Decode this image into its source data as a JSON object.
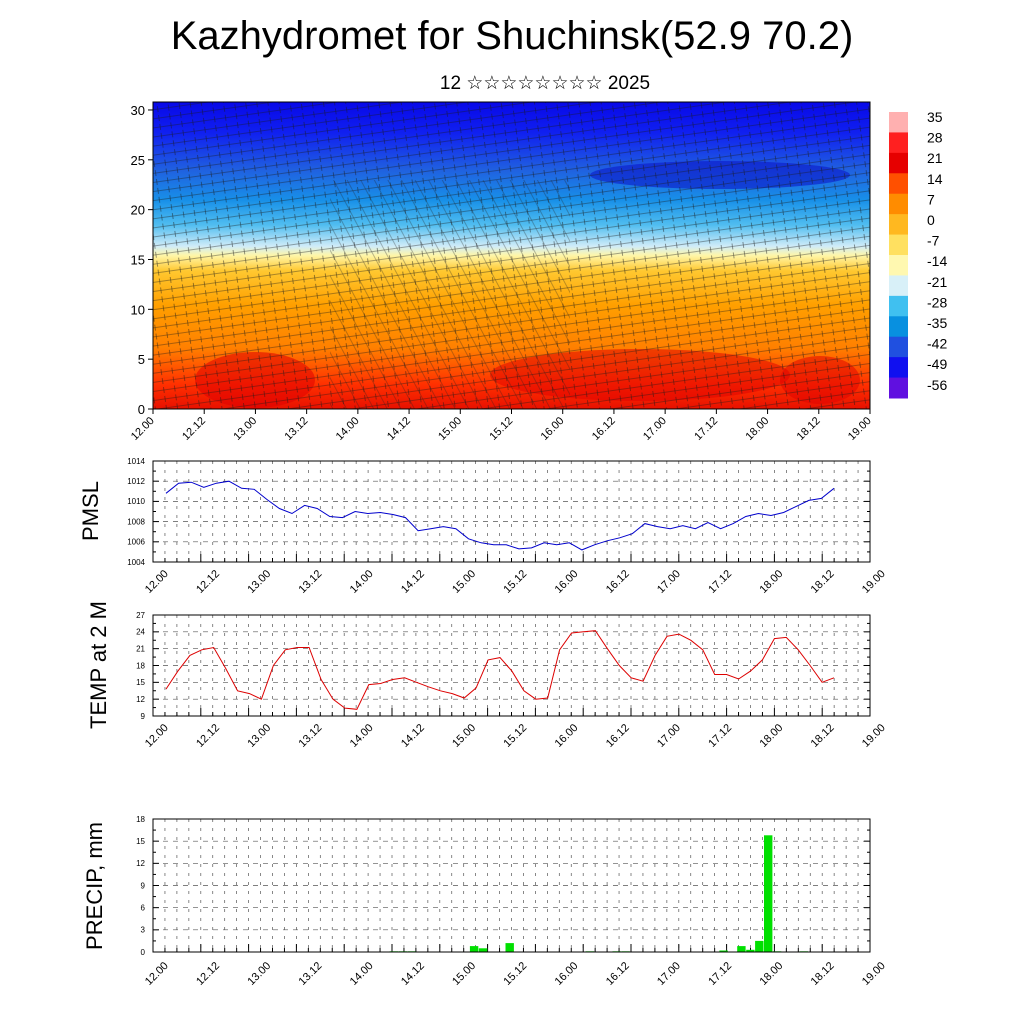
{
  "title": "Kazhydromet for Shuchinsk(52.9 70.2)",
  "subtitle": "12 ☆☆☆☆☆☆☆☆ 2025",
  "time_labels": [
    "12.00",
    "12.12",
    "13.00",
    "13.12",
    "14.00",
    "14.12",
    "15.00",
    "15.12",
    "16.00",
    "16.12",
    "17.00",
    "17.12",
    "18.00",
    "18.12",
    "19.00"
  ],
  "chart_data": [
    {
      "type": "heatmap",
      "title": "",
      "xlabel": "",
      "ylabel": "",
      "x": [
        "12.00",
        "12.12",
        "13.00",
        "13.12",
        "14.00",
        "14.12",
        "15.00",
        "15.12",
        "16.00",
        "16.12",
        "17.00",
        "17.12",
        "18.00",
        "18.12",
        "19.00"
      ],
      "yticks": [
        0,
        5,
        10,
        15,
        20,
        25,
        30
      ],
      "ylim": [
        0,
        30.8
      ],
      "colorbar": {
        "ticks": [
          35,
          28,
          21,
          14,
          7,
          0,
          -7,
          -14,
          -21,
          -28,
          -35,
          -42,
          -49,
          -56
        ],
        "colors": [
          "#ffb0b0",
          "#ff2020",
          "#e60000",
          "#ff5000",
          "#ff8c00",
          "#ffb820",
          "#ffe060",
          "#fff8b0",
          "#d8f0f8",
          "#40c0f0",
          "#0890e0",
          "#2050e0",
          "#1010f0",
          "#6010e0"
        ]
      }
    },
    {
      "type": "line",
      "ylabel": "PMSL",
      "ylim": [
        1004,
        1014
      ],
      "yticks": [
        1004,
        1006,
        1008,
        1010,
        1012,
        1014
      ],
      "series": [
        {
          "color": "#0000cc",
          "values": [
            1010.8,
            1011.8,
            1011.9,
            1011.4,
            1011.8,
            1012.0,
            1011.3,
            1011.2,
            1010.2,
            1009.3,
            1008.8,
            1009.6,
            1009.3,
            1008.5,
            1008.4,
            1009.0,
            1008.8,
            1008.9,
            1008.7,
            1008.4,
            1007.1,
            1007.3,
            1007.5,
            1007.3,
            1006.3,
            1005.9,
            1005.7,
            1005.7,
            1005.3,
            1005.4,
            1005.9,
            1005.7,
            1005.9,
            1005.2,
            1005.7,
            1006.1,
            1006.4,
            1006.8,
            1007.8,
            1007.5,
            1007.3,
            1007.6,
            1007.3,
            1007.9,
            1007.3,
            1007.8,
            1008.5,
            1008.8,
            1008.6,
            1008.9,
            1009.5,
            1010.1,
            1010.3,
            1011.3
          ]
        }
      ]
    },
    {
      "type": "line",
      "ylabel": "TEMP at 2 M",
      "ylim": [
        9,
        27
      ],
      "yticks": [
        9,
        12,
        15,
        18,
        21,
        24,
        27
      ],
      "series": [
        {
          "color": "#dd0000",
          "values": [
            13.8,
            17.0,
            19.8,
            20.8,
            21.2,
            17.5,
            13.5,
            13.0,
            12.0,
            18.0,
            20.8,
            21.2,
            21.2,
            15.5,
            12.0,
            10.4,
            10.2,
            14.6,
            14.8,
            15.5,
            15.8,
            15.0,
            14.2,
            13.5,
            13.0,
            12.2,
            14.0,
            19.0,
            19.4,
            17.0,
            13.5,
            12.0,
            12.2,
            20.8,
            23.8,
            24.0,
            24.2,
            21.0,
            18.0,
            15.8,
            15.2,
            19.8,
            23.2,
            23.6,
            22.5,
            20.8,
            16.4,
            16.4,
            15.6,
            17.0,
            19.0,
            22.8,
            23.0,
            20.8,
            18.0,
            15.0,
            15.8
          ]
        }
      ]
    },
    {
      "type": "bar",
      "ylabel": "PRECIP, mm",
      "ylim": [
        0,
        18
      ],
      "yticks": [
        0,
        3,
        6,
        9,
        12,
        15,
        18
      ],
      "color": "#00e000",
      "values": [
        0,
        0,
        0,
        0,
        0,
        0,
        0,
        0,
        0,
        0,
        0,
        0,
        0,
        0,
        0,
        0,
        0,
        0,
        0,
        0,
        0,
        0,
        0,
        0,
        0,
        0,
        0.1,
        0.1,
        0.1,
        0,
        0,
        0,
        0,
        0,
        0,
        0.8,
        0.5,
        0,
        0,
        1.2,
        0,
        0,
        0,
        0,
        0,
        0,
        0,
        0,
        0.1,
        0,
        0,
        0.1,
        0.1,
        0,
        0,
        0,
        0,
        0,
        0,
        0,
        0,
        0,
        0,
        0.2,
        0,
        0.8,
        0.3,
        1.5,
        15.8,
        0.1,
        0,
        0,
        0.1,
        0,
        0,
        0,
        0,
        0,
        0
      ]
    }
  ]
}
